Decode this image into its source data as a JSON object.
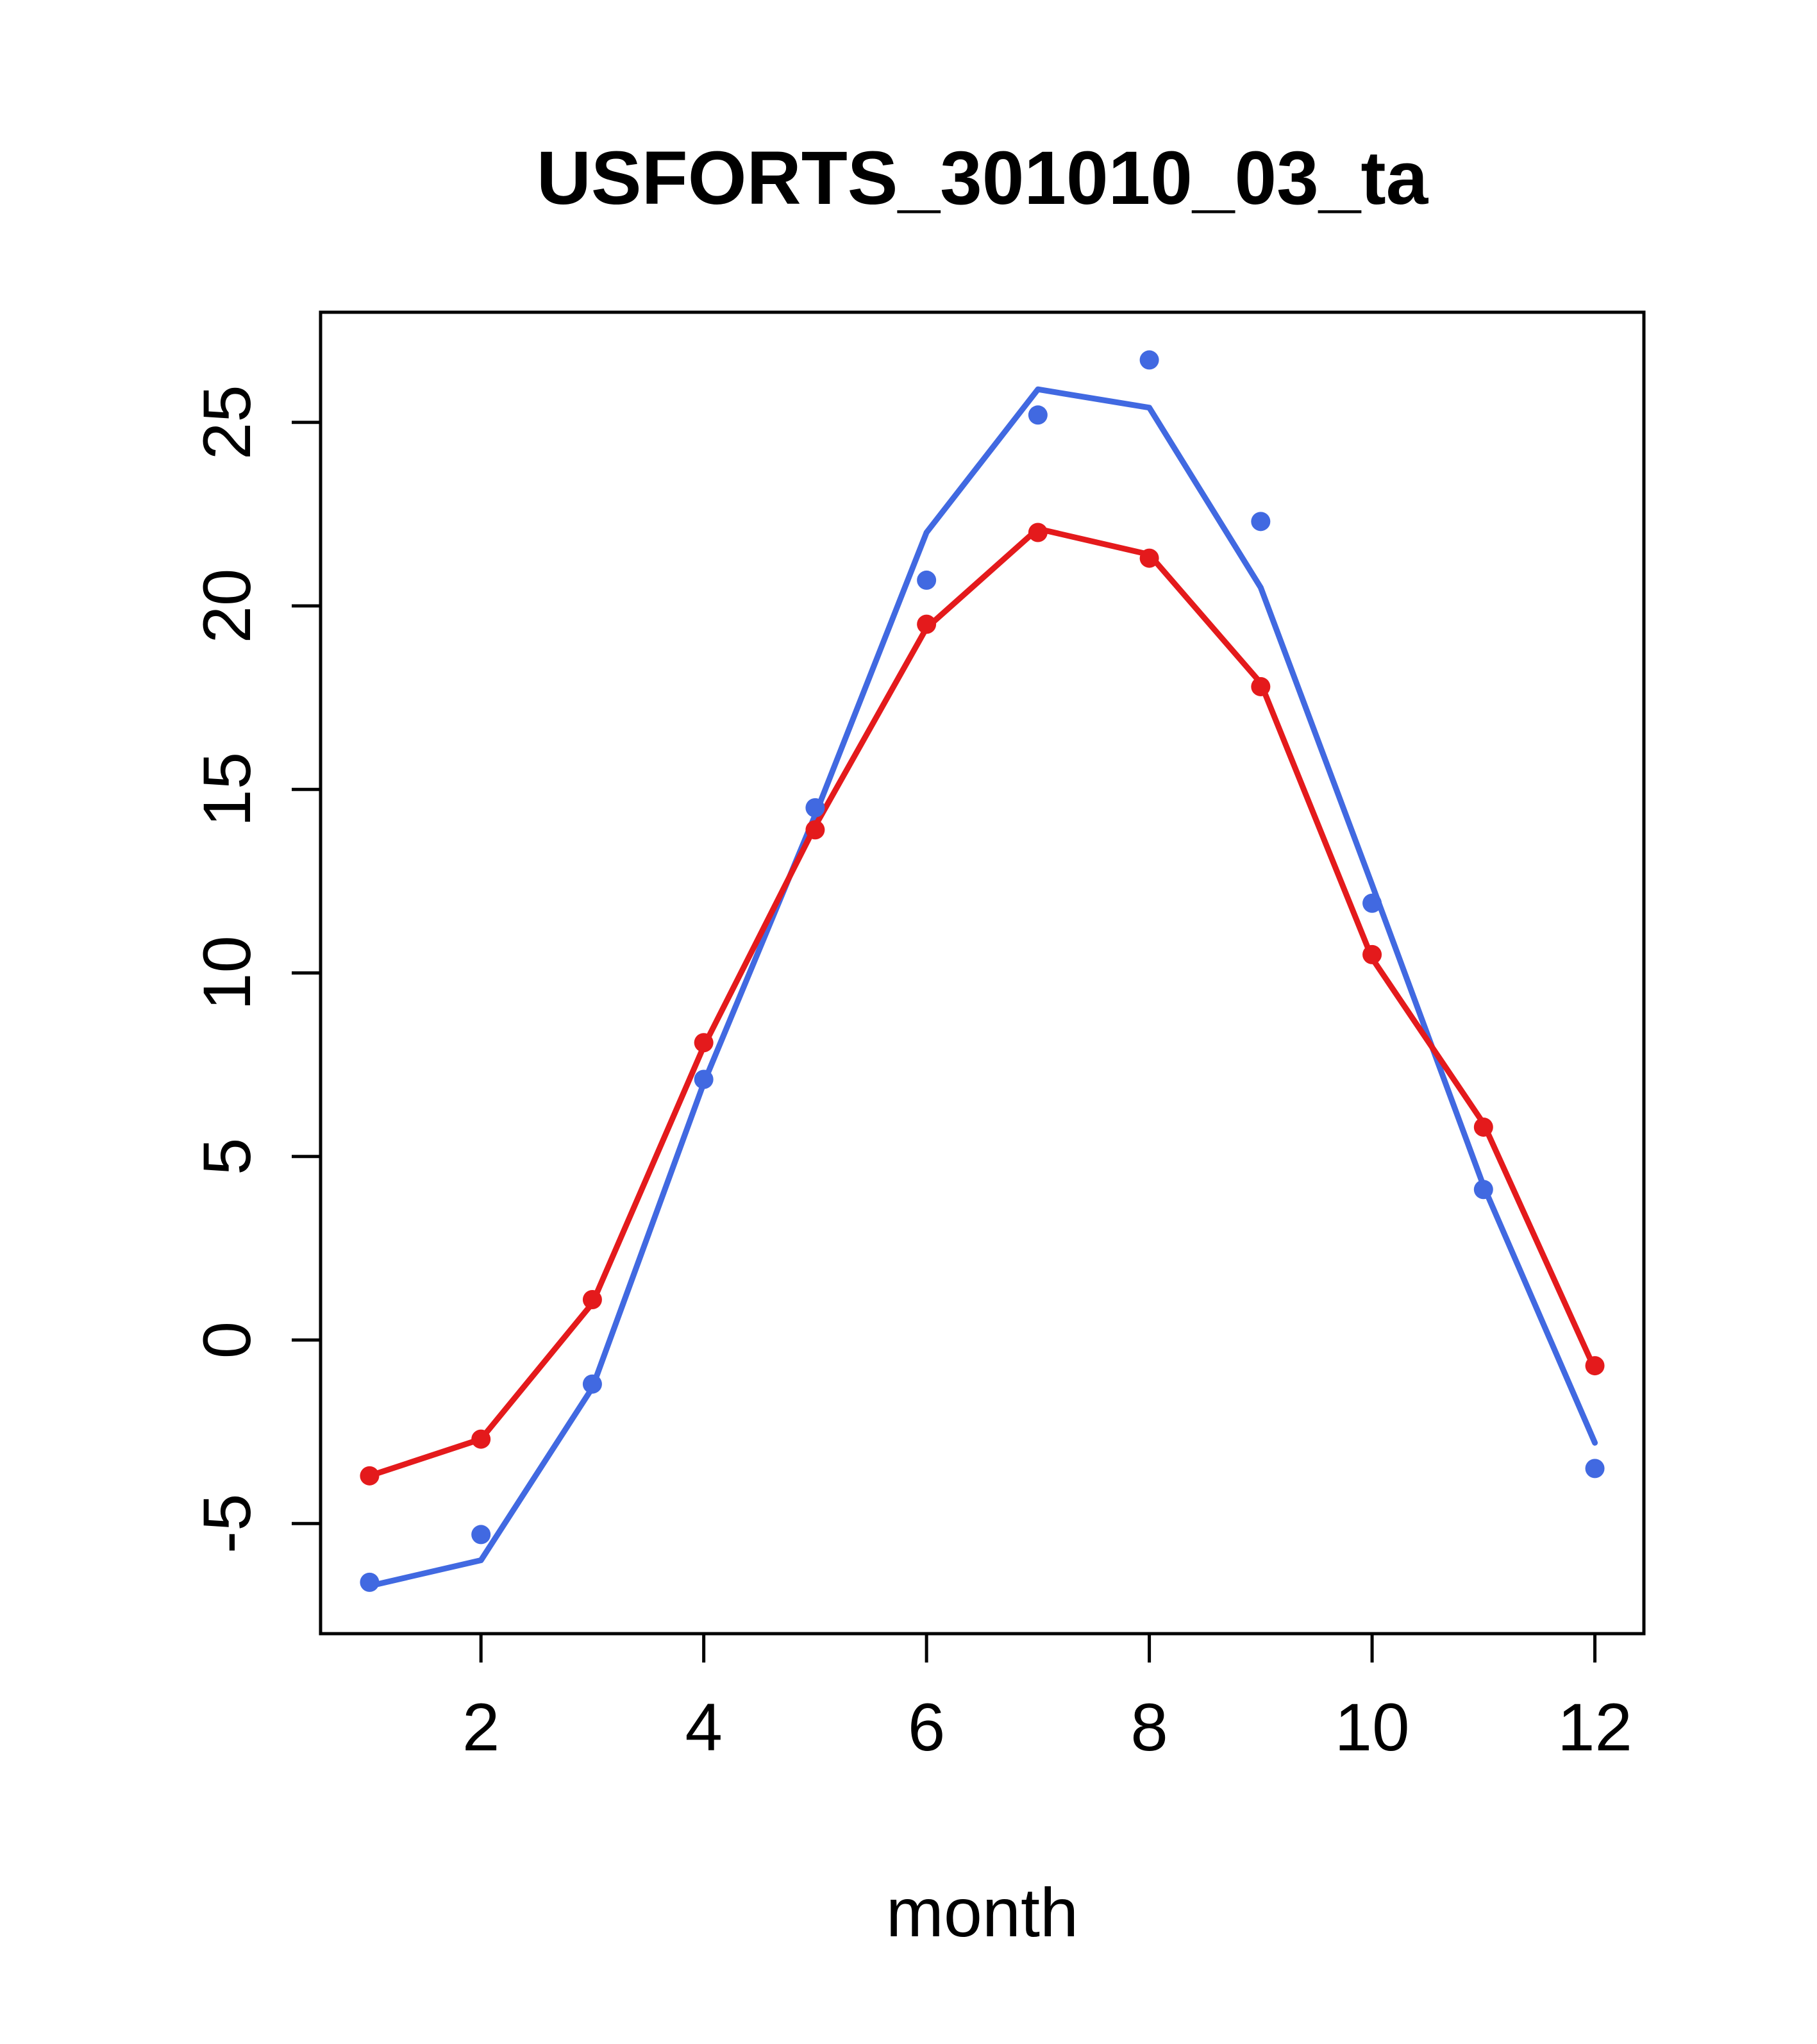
{
  "figure": {
    "background": "#FFFFFF",
    "border_color": "#000000"
  },
  "chart_data": {
    "type": "line",
    "title": "USFORTS_301010_03_ta",
    "xlabel": "month",
    "ylabel": "",
    "x": [
      1,
      2,
      3,
      4,
      5,
      6,
      7,
      8,
      9,
      10,
      11,
      12
    ],
    "xlim": [
      0.56,
      12.44
    ],
    "ylim": [
      -8,
      28
    ],
    "xticks": [
      2,
      4,
      6,
      8,
      10,
      12
    ],
    "yticks": [
      -5,
      0,
      5,
      10,
      15,
      20,
      25
    ],
    "grid": false,
    "legend": null,
    "colors": {
      "blue_series": "#4169E1",
      "red_series": "#E41A1C"
    },
    "series": [
      {
        "name": "blue-line",
        "type": "line",
        "color": "#4169E1",
        "values": [
          -6.7,
          -6.0,
          -1.3,
          7.0,
          14.3,
          22.0,
          25.9,
          25.4,
          20.5,
          12.4,
          4.2,
          -2.8
        ]
      },
      {
        "name": "red-line",
        "type": "line",
        "color": "#E41A1C",
        "values": [
          -3.7,
          -2.7,
          1.0,
          8.0,
          14.0,
          19.4,
          22.1,
          21.4,
          17.9,
          10.4,
          5.9,
          -0.8
        ]
      },
      {
        "name": "blue-points",
        "type": "scatter",
        "color": "#4169E1",
        "values": [
          -6.6,
          -5.3,
          -1.2,
          7.1,
          14.5,
          20.7,
          25.2,
          26.7,
          22.3,
          11.9,
          4.1,
          -3.5
        ]
      },
      {
        "name": "red-points",
        "type": "scatter",
        "color": "#E41A1C",
        "values": [
          -3.7,
          -2.7,
          1.1,
          8.1,
          13.9,
          19.5,
          22.0,
          21.3,
          17.8,
          10.5,
          5.8,
          -0.7
        ]
      }
    ]
  }
}
